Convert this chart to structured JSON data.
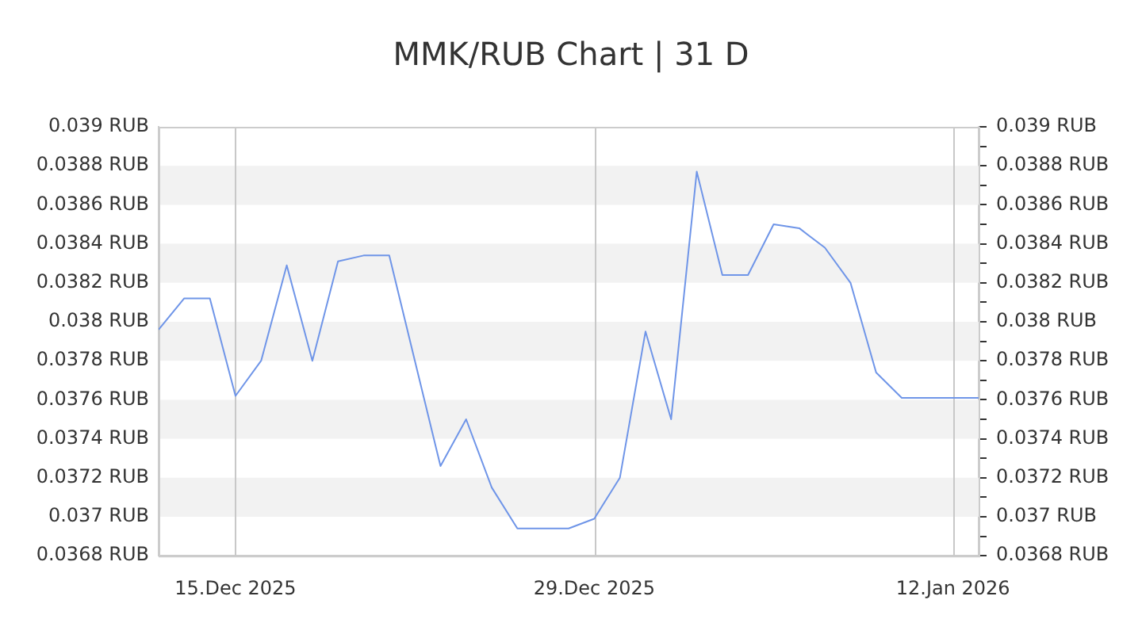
{
  "chart_data": {
    "type": "line",
    "title": "MMK/RUB Chart | 31 D",
    "x": [
      "2025-12-12",
      "2025-12-13",
      "2025-12-14",
      "2025-12-15",
      "2025-12-16",
      "2025-12-17",
      "2025-12-18",
      "2025-12-19",
      "2025-12-20",
      "2025-12-21",
      "2025-12-22",
      "2025-12-23",
      "2025-12-24",
      "2025-12-25",
      "2025-12-26",
      "2025-12-27",
      "2025-12-28",
      "2025-12-29",
      "2025-12-30",
      "2025-12-31",
      "2026-01-01",
      "2026-01-02",
      "2026-01-03",
      "2026-01-04",
      "2026-01-05",
      "2026-01-06",
      "2026-01-07",
      "2026-01-08",
      "2026-01-09",
      "2026-01-10",
      "2026-01-11",
      "2026-01-12",
      "2026-01-13"
    ],
    "series": [
      {
        "color": "#6f95e8",
        "values": [
          0.03796,
          0.03812,
          0.03812,
          0.03762,
          0.0378,
          0.03829,
          0.0378,
          0.03831,
          0.03834,
          0.03834,
          0.0378,
          0.03726,
          0.0375,
          0.03715,
          0.03694,
          0.03694,
          0.03694,
          0.03699,
          0.0372,
          0.03795,
          0.0375,
          0.03877,
          0.03824,
          0.03824,
          0.0385,
          0.03848,
          0.03838,
          0.0382,
          0.03774,
          0.03761,
          0.03761,
          0.03761,
          0.03761
        ]
      }
    ],
    "xlim": [
      "2025-12-12",
      "2026-01-13"
    ],
    "xticks": [
      {
        "value": "2025-12-15",
        "label": "15.Dec 2025"
      },
      {
        "value": "2025-12-29",
        "label": "29.Dec 2025"
      },
      {
        "value": "2026-01-12",
        "label": "12.Jan 2026"
      }
    ],
    "ylim": [
      0.0368,
      0.039
    ],
    "yticks": [
      {
        "value": 0.0368,
        "label": "0.0368 RUB"
      },
      {
        "value": 0.037,
        "label": "0.037 RUB"
      },
      {
        "value": 0.0372,
        "label": "0.0372 RUB"
      },
      {
        "value": 0.0374,
        "label": "0.0374 RUB"
      },
      {
        "value": 0.0376,
        "label": "0.0376 RUB"
      },
      {
        "value": 0.0378,
        "label": "0.0378 RUB"
      },
      {
        "value": 0.038,
        "label": "0.038 RUB"
      },
      {
        "value": 0.0382,
        "label": "0.0382 RUB"
      },
      {
        "value": 0.0384,
        "label": "0.0384 RUB"
      },
      {
        "value": 0.0386,
        "label": "0.0386 RUB"
      },
      {
        "value": 0.0388,
        "label": "0.0388 RUB"
      },
      {
        "value": 0.039,
        "label": "0.039 RUB"
      }
    ],
    "y2lim": [
      0.0368,
      0.039
    ],
    "y2ticks": [
      {
        "value": 0.0368,
        "label": "0.0368 RUB"
      },
      {
        "value": 0.0369,
        "label": null
      },
      {
        "value": 0.037,
        "label": "0.037 RUB"
      },
      {
        "value": 0.0371,
        "label": null
      },
      {
        "value": 0.0372,
        "label": "0.0372 RUB"
      },
      {
        "value": 0.0373,
        "label": null
      },
      {
        "value": 0.0374,
        "label": "0.0374 RUB"
      },
      {
        "value": 0.0375,
        "label": null
      },
      {
        "value": 0.0376,
        "label": "0.0376 RUB"
      },
      {
        "value": 0.0377,
        "label": null
      },
      {
        "value": 0.0378,
        "label": "0.0378 RUB"
      },
      {
        "value": 0.0379,
        "label": null
      },
      {
        "value": 0.038,
        "label": "0.038 RUB"
      },
      {
        "value": 0.0381,
        "label": null
      },
      {
        "value": 0.0382,
        "label": "0.0382 RUB"
      },
      {
        "value": 0.0383,
        "label": null
      },
      {
        "value": 0.0384,
        "label": "0.0384 RUB"
      },
      {
        "value": 0.0385,
        "label": null
      },
      {
        "value": 0.0386,
        "label": "0.0386 RUB"
      },
      {
        "value": 0.0387,
        "label": null
      },
      {
        "value": 0.0388,
        "label": "0.0388 RUB"
      },
      {
        "value": 0.0389,
        "label": null
      },
      {
        "value": 0.039,
        "label": "0.039 RUB"
      }
    ],
    "grid": true,
    "legend": false,
    "marker": "none",
    "line_style": "solid"
  }
}
